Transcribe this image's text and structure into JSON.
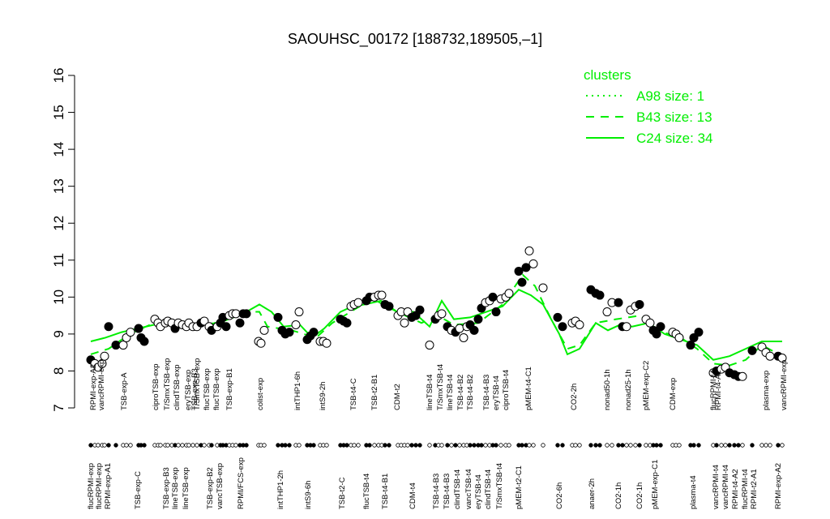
{
  "chart_data": {
    "type": "scatter",
    "title": "SAOUHSC_00172 [188732,189505,–1]",
    "ylim": [
      7,
      16
    ],
    "yticks": [
      7,
      8,
      9,
      10,
      11,
      12,
      13,
      14,
      15,
      16
    ],
    "xlim": [
      0,
      880
    ],
    "points": {
      "x": [
        12,
        17,
        21,
        26,
        29,
        34,
        43,
        52,
        56,
        61,
        71,
        74,
        78,
        91,
        95,
        98,
        104,
        107,
        112,
        116,
        120,
        125,
        130,
        133,
        138,
        143,
        148,
        152,
        158,
        161,
        168,
        172,
        175,
        179,
        183,
        187,
        191,
        196,
        200,
        204,
        219,
        222,
        226,
        243,
        248,
        252,
        257,
        265,
        269,
        279,
        283,
        287,
        295,
        299,
        303,
        320,
        324,
        328,
        333,
        337,
        342,
        352,
        356,
        362,
        367,
        371,
        375,
        380,
        391,
        395,
        399,
        403,
        408,
        413,
        418,
        430,
        437,
        441,
        445,
        452,
        457,
        462,
        467,
        472,
        476,
        480,
        485,
        490,
        494,
        499,
        504,
        508,
        512,
        518,
        524,
        528,
        540,
        544,
        549,
        553,
        558,
        570,
        588,
        594,
        606,
        610,
        615,
        629,
        635,
        640,
        649,
        655,
        663,
        668,
        673,
        678,
        684,
        689,
        697,
        702,
        706,
        710,
        715,
        730,
        734,
        738,
        752,
        756,
        762,
        780,
        784,
        790,
        795,
        800,
        806,
        811,
        816,
        828,
        840,
        845,
        850,
        860,
        865
      ],
      "values": [
        8.3,
        8.2,
        8.1,
        8.2,
        8.4,
        9.2,
        8.7,
        8.7,
        8.9,
        9.05,
        9.15,
        8.9,
        8.8,
        9.4,
        9.3,
        9.2,
        9.3,
        9.35,
        9.3,
        9.15,
        9.3,
        9.25,
        9.2,
        9.3,
        9.2,
        9.2,
        9.3,
        9.35,
        9.2,
        9.1,
        9.2,
        9.3,
        9.45,
        9.2,
        9.5,
        9.55,
        9.55,
        9.3,
        9.55,
        9.55,
        8.8,
        8.75,
        9.1,
        9.45,
        9.1,
        9.0,
        9.05,
        9.25,
        9.6,
        8.85,
        8.95,
        9.05,
        8.8,
        8.8,
        8.75,
        9.4,
        9.35,
        9.3,
        9.75,
        9.8,
        9.85,
        9.9,
        10,
        10,
        10.05,
        10.05,
        9.8,
        9.75,
        9.5,
        9.6,
        9.3,
        9.6,
        9.45,
        9.5,
        9.65,
        8.7,
        9.4,
        9.5,
        9.55,
        9.2,
        9.1,
        9.05,
        9.15,
        8.9,
        9.2,
        9.25,
        9.1,
        9.4,
        9.7,
        9.85,
        9.9,
        10,
        9.6,
        9.95,
        10,
        10.1,
        10.7,
        10.4,
        10.8,
        11.25,
        10.9,
        10.25,
        9.45,
        9.2,
        9.3,
        9.35,
        9.25,
        10.2,
        10.1,
        10.05,
        9.6,
        9.85,
        9.85,
        9.2,
        9.2,
        9.65,
        9.75,
        9.8,
        9.4,
        9.3,
        9.1,
        9,
        9.2,
        9.05,
        9,
        8.9,
        8.7,
        8.9,
        9.05,
        7.95,
        8,
        8.05,
        8.1,
        7.95,
        7.9,
        7.85,
        7.85,
        8.55,
        8.65,
        8.5,
        8.4,
        8.4,
        8.35
      ],
      "filled": [
        true,
        false,
        false,
        false,
        false,
        true,
        true,
        false,
        false,
        false,
        true,
        true,
        true,
        false,
        false,
        false,
        false,
        false,
        false,
        true,
        false,
        false,
        false,
        false,
        false,
        false,
        true,
        false,
        false,
        true,
        false,
        true,
        true,
        true,
        false,
        false,
        false,
        true,
        true,
        true,
        false,
        false,
        false,
        true,
        true,
        true,
        true,
        false,
        false,
        true,
        true,
        true,
        false,
        false,
        false,
        true,
        true,
        true,
        false,
        false,
        false,
        true,
        true,
        false,
        false,
        false,
        true,
        true,
        false,
        false,
        false,
        false,
        true,
        true,
        true,
        false,
        true,
        false,
        false,
        true,
        false,
        true,
        false,
        false,
        false,
        true,
        true,
        true,
        true,
        false,
        false,
        true,
        true,
        false,
        false,
        false,
        true,
        true,
        true,
        false,
        false,
        false,
        true,
        true,
        false,
        false,
        false,
        true,
        true,
        true,
        false,
        false,
        true,
        true,
        false,
        false,
        false,
        true,
        false,
        false,
        true,
        true,
        true,
        false,
        false,
        false,
        true,
        true,
        true,
        false,
        true,
        false,
        false,
        true,
        true,
        true,
        false,
        true,
        false,
        false,
        false,
        true,
        false
      ]
    },
    "legend_title": "clusters",
    "series": [
      {
        "name": "A98 size: 1",
        "color": "#00ee00",
        "dash": "dotted"
      },
      {
        "name": "B43 size: 13",
        "color": "#00ee00",
        "dash": "dashed",
        "x": [
          12,
          34,
          60,
          90,
          130,
          170,
          200,
          220,
          230,
          260,
          290,
          310,
          340,
          360,
          390,
          420,
          440,
          460,
          490,
          520,
          545,
          560,
          580,
          600,
          615,
          635,
          660,
          690,
          710,
          740,
          760,
          780,
          800,
          820,
          840,
          865
        ],
        "values": [
          8.45,
          8.6,
          9.0,
          9.3,
          9.3,
          9.3,
          9.6,
          9.6,
          9.2,
          9.1,
          8.9,
          9.3,
          9.7,
          9.95,
          9.6,
          9.3,
          9.5,
          9.25,
          9.3,
          9.8,
          10.6,
          10.3,
          9.4,
          8.6,
          8.7,
          9.3,
          9.4,
          9.5,
          9.1,
          8.9,
          8.6,
          8.2,
          8.15,
          8.3,
          8.7,
          8.4
        ]
      },
      {
        "name": "C24 size: 34",
        "color": "#00ee00",
        "dash": "solid",
        "x": [
          12,
          30,
          50,
          70,
          90,
          110,
          140,
          170,
          200,
          220,
          235,
          250,
          270,
          285,
          300,
          320,
          335,
          350,
          370,
          390,
          410,
          430,
          445,
          460,
          480,
          500,
          520,
          540,
          555,
          570,
          590,
          600,
          615,
          635,
          650,
          665,
          680,
          700,
          720,
          740,
          760,
          780,
          800,
          820,
          840,
          865
        ],
        "values": [
          8.8,
          8.9,
          9.05,
          9.15,
          9.25,
          9.3,
          9.25,
          9.3,
          9.55,
          9.8,
          9.6,
          9.2,
          9.25,
          8.9,
          9.15,
          9.6,
          9.75,
          9.8,
          9.9,
          9.6,
          9.6,
          9.2,
          9.9,
          9.4,
          9.45,
          9.6,
          9.75,
          10.2,
          10.05,
          9.8,
          9.0,
          8.45,
          8.6,
          9.3,
          9.1,
          9.25,
          9.2,
          9.3,
          9.0,
          8.85,
          8.7,
          8.3,
          8.4,
          8.6,
          8.8,
          8.8
        ]
      }
    ],
    "xtick_rows": [
      [
        {
          "value": 15,
          "label": "RPMI-exp-A2"
        },
        {
          "value": 25,
          "label": "vancRPMI-exp"
        },
        {
          "value": 53,
          "label": "TSB-exp-A"
        },
        {
          "value": 92,
          "label": "ciproTSB-exp"
        },
        {
          "value": 106,
          "label": "T/SmxTSB-exp"
        },
        {
          "value": 118,
          "label": "clindTSB-exp"
        },
        {
          "value": 132,
          "label": "eryTSB-exp"
        },
        {
          "value": 140,
          "label": "TSB-exp-B3"
        },
        {
          "value": 143,
          "label": "T/SmxTSB-exp"
        },
        {
          "value": 155,
          "label": "flucTSB-exp"
        },
        {
          "value": 167,
          "label": "flucTSB-exp"
        },
        {
          "value": 183,
          "label": "TSB-exp-B1"
        },
        {
          "value": 221,
          "label": "colist-exp"
        },
        {
          "value": 267,
          "label": "intTHP1-6h"
        },
        {
          "value": 298,
          "label": "intS9-2h"
        },
        {
          "value": 336,
          "label": "TSB-t4-C"
        },
        {
          "value": 362,
          "label": "TSB-t2-B1"
        },
        {
          "value": 390,
          "label": "CDM-t2"
        },
        {
          "value": 430,
          "label": "lineTSB-t4"
        },
        {
          "value": 443,
          "label": "T/SmxTSB-t4"
        },
        {
          "value": 455,
          "label": "lineTSB-t4"
        },
        {
          "value": 468,
          "label": "TSB-t4-B2"
        },
        {
          "value": 480,
          "label": "TSB-t4-B2"
        },
        {
          "value": 500,
          "label": "TSB-t4-B3"
        },
        {
          "value": 512,
          "label": "eryTSB-t4"
        },
        {
          "value": 524,
          "label": "ciproTSB-t4"
        },
        {
          "value": 552,
          "label": "pMEM-t4-C1"
        },
        {
          "value": 608,
          "label": "CO2-2h"
        },
        {
          "value": 649,
          "label": "nonad50-1h"
        },
        {
          "value": 675,
          "label": "nonad25-1h"
        },
        {
          "value": 697,
          "label": "pMEM-exp-C2"
        },
        {
          "value": 730,
          "label": "CDM-exp"
        },
        {
          "value": 780,
          "label": "flucRPMI-t4"
        },
        {
          "value": 786,
          "label": "RPMI-t4-A2"
        },
        {
          "value": 845,
          "label": "plasma-exp"
        },
        {
          "value": 867,
          "label": "vancRPMI-exp"
        }
      ],
      [
        {
          "value": 12,
          "label": "flucRPMI-exp"
        },
        {
          "value": 22,
          "label": "flucRPMI-exp"
        },
        {
          "value": 33,
          "label": "RPMI-exp-A1"
        },
        {
          "value": 70,
          "label": "TSB-exp-C"
        },
        {
          "value": 105,
          "label": "TSB-exp-B3"
        },
        {
          "value": 116,
          "label": "lineTSB-exp"
        },
        {
          "value": 129,
          "label": "lineTSB-exp"
        },
        {
          "value": 159,
          "label": "TSB-exp-B2"
        },
        {
          "value": 171,
          "label": "vancTSB-exp"
        },
        {
          "value": 197,
          "label": "RPMI/FCS-exp"
        },
        {
          "value": 246,
          "label": "intTHP1-2h"
        },
        {
          "value": 280,
          "label": "intS9-6h"
        },
        {
          "value": 322,
          "label": "TSB-t2-C"
        },
        {
          "value": 352,
          "label": "flucTSB-t4"
        },
        {
          "value": 375,
          "label": "TSB-t4-B1"
        },
        {
          "value": 409,
          "label": "CDM-t4"
        },
        {
          "value": 438,
          "label": "TSB-t4-B3"
        },
        {
          "value": 451,
          "label": "TSB-t4-B3"
        },
        {
          "value": 464,
          "label": "clindTSB-t4"
        },
        {
          "value": 478,
          "label": "vancTSB-t4"
        },
        {
          "value": 490,
          "label": "eryTSB-t4"
        },
        {
          "value": 502,
          "label": "clindTSB-t4"
        },
        {
          "value": 516,
          "label": "T/SmxTSB-t4"
        },
        {
          "value": 540,
          "label": "pMEM-t2-C1"
        },
        {
          "value": 590,
          "label": "CO2-6h"
        },
        {
          "value": 630,
          "label": "anaer-2h"
        },
        {
          "value": 663,
          "label": "CO2-1h"
        },
        {
          "value": 689,
          "label": "CO2-1h"
        },
        {
          "value": 708,
          "label": "pMEM-exp-C1"
        },
        {
          "value": 755,
          "label": "plasma-t4"
        },
        {
          "value": 783,
          "label": "vancRPMI-t4"
        },
        {
          "value": 795,
          "label": "vancRPMI-t4"
        },
        {
          "value": 807,
          "label": "RPMI-t4-A2"
        },
        {
          "value": 819,
          "label": "flucRPMI-t4"
        },
        {
          "value": 830,
          "label": "RPMI-t2-A1"
        },
        {
          "value": 860,
          "label": "RPMI-exp-A2"
        }
      ]
    ]
  }
}
